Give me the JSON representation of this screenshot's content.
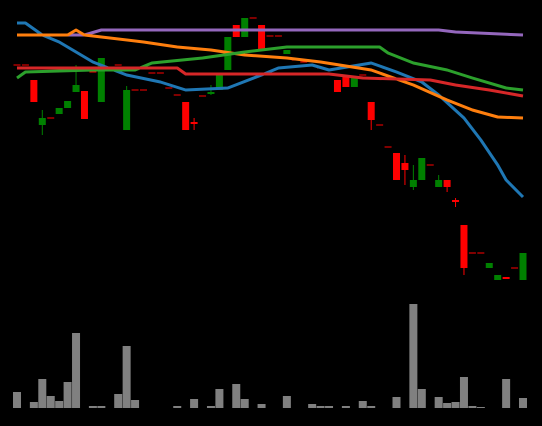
{
  "chart_data": {
    "type": "candlestick",
    "up_color": "#008000",
    "down_color": "#ff0000",
    "ylim": [
      10,
      285
    ],
    "open": [
      235,
      235,
      220,
      175,
      182,
      186,
      192,
      208,
      209,
      228,
      198,
      232,
      235,
      170,
      210,
      210,
      227,
      227,
      212,
      205,
      198,
      178,
      204,
      206,
      210,
      230,
      275,
      263,
      282,
      275,
      264,
      264,
      246,
      240,
      238,
      235,
      232,
      230,
      220,
      225,
      213,
      225,
      198,
      175,
      153,
      147,
      137,
      113,
      120,
      135,
      113,
      120,
      100,
      75,
      47,
      47,
      32,
      20,
      23,
      32,
      20
    ],
    "close": [
      235,
      235,
      198,
      182,
      182,
      192,
      199,
      215,
      181,
      228,
      242,
      232,
      235,
      210,
      210,
      210,
      227,
      227,
      212,
      205,
      170,
      176,
      204,
      208,
      225,
      263,
      263,
      282,
      282,
      250,
      264,
      264,
      250,
      240,
      238,
      235,
      232,
      230,
      208,
      213,
      222,
      225,
      180,
      175,
      153,
      120,
      130,
      120,
      142,
      135,
      120,
      113,
      98,
      32,
      47,
      47,
      37,
      25,
      21,
      32,
      47
    ],
    "high": [
      235,
      235,
      220,
      190,
      182,
      192,
      199,
      235,
      209,
      228,
      242,
      232,
      235,
      214,
      210,
      210,
      227,
      227,
      212,
      205,
      198,
      182,
      204,
      215,
      225,
      263,
      275,
      282,
      282,
      275,
      264,
      264,
      250,
      240,
      238,
      235,
      232,
      230,
      220,
      225,
      222,
      225,
      198,
      175,
      153,
      147,
      145,
      135,
      142,
      135,
      125,
      120,
      102,
      75,
      47,
      47,
      37,
      25,
      23,
      32,
      47
    ],
    "low": [
      235,
      235,
      198,
      165,
      182,
      186,
      192,
      208,
      181,
      228,
      198,
      232,
      235,
      170,
      210,
      210,
      227,
      227,
      212,
      205,
      170,
      170,
      204,
      205,
      210,
      230,
      263,
      263,
      282,
      250,
      264,
      264,
      246,
      240,
      238,
      235,
      232,
      230,
      208,
      213,
      213,
      225,
      170,
      175,
      153,
      120,
      115,
      110,
      120,
      135,
      113,
      108,
      93,
      25,
      47,
      47,
      32,
      20,
      21,
      32,
      20
    ],
    "series": [
      {
        "color": "#9467bd",
        "x": [
          0,
          8,
          10,
          50,
          52,
          60
        ],
        "values": [
          265,
          265,
          270,
          270,
          268,
          265
        ]
      },
      {
        "color": "#1f77b4",
        "x": [
          0,
          1,
          3,
          5,
          9,
          13,
          17,
          20,
          25,
          29,
          31,
          35,
          37,
          42,
          45,
          48,
          50,
          53,
          55,
          57,
          58,
          60
        ],
        "values": [
          277,
          277,
          265,
          258,
          238,
          225,
          218,
          210,
          212,
          225,
          232,
          235,
          230,
          237,
          228,
          218,
          205,
          182,
          160,
          135,
          120,
          103
        ]
      },
      {
        "color": "#ff7f0e",
        "x": [
          0,
          6,
          7,
          8,
          15,
          19,
          23,
          27,
          32,
          36,
          42,
          47,
          51,
          54,
          57,
          60
        ],
        "values": [
          265,
          265,
          270,
          265,
          258,
          253,
          250,
          245,
          242,
          238,
          230,
          215,
          200,
          190,
          183,
          182
        ]
      },
      {
        "color": "#2ca02c",
        "x": [
          0,
          1,
          9,
          14,
          16,
          22,
          27,
          32,
          43,
          44,
          47,
          51,
          54,
          58,
          60
        ],
        "values": [
          222,
          228,
          230,
          230,
          237,
          242,
          248,
          253,
          253,
          247,
          237,
          230,
          222,
          212,
          210
        ]
      },
      {
        "color": "#d62728",
        "x": [
          0,
          19,
          20,
          37,
          41,
          49,
          52,
          56,
          60
        ],
        "values": [
          232,
          232,
          226,
          226,
          222,
          220,
          215,
          210,
          204
        ]
      }
    ],
    "volume": {
      "color": "#808080",
      "ylim": [
        0,
        108
      ],
      "values": [
        16,
        0,
        6,
        29,
        12,
        7,
        26,
        75,
        0,
        2,
        2,
        0,
        14,
        62,
        8,
        0,
        0,
        0,
        0,
        2,
        0,
        9,
        0,
        2,
        19,
        0,
        24,
        9,
        0,
        4,
        0,
        0,
        12,
        0,
        0,
        4,
        2,
        2,
        0,
        2,
        0,
        7,
        2,
        0,
        0,
        11,
        0,
        104,
        19,
        0,
        11,
        5,
        6,
        31,
        2,
        1,
        0,
        0,
        29,
        0,
        10
      ]
    }
  }
}
